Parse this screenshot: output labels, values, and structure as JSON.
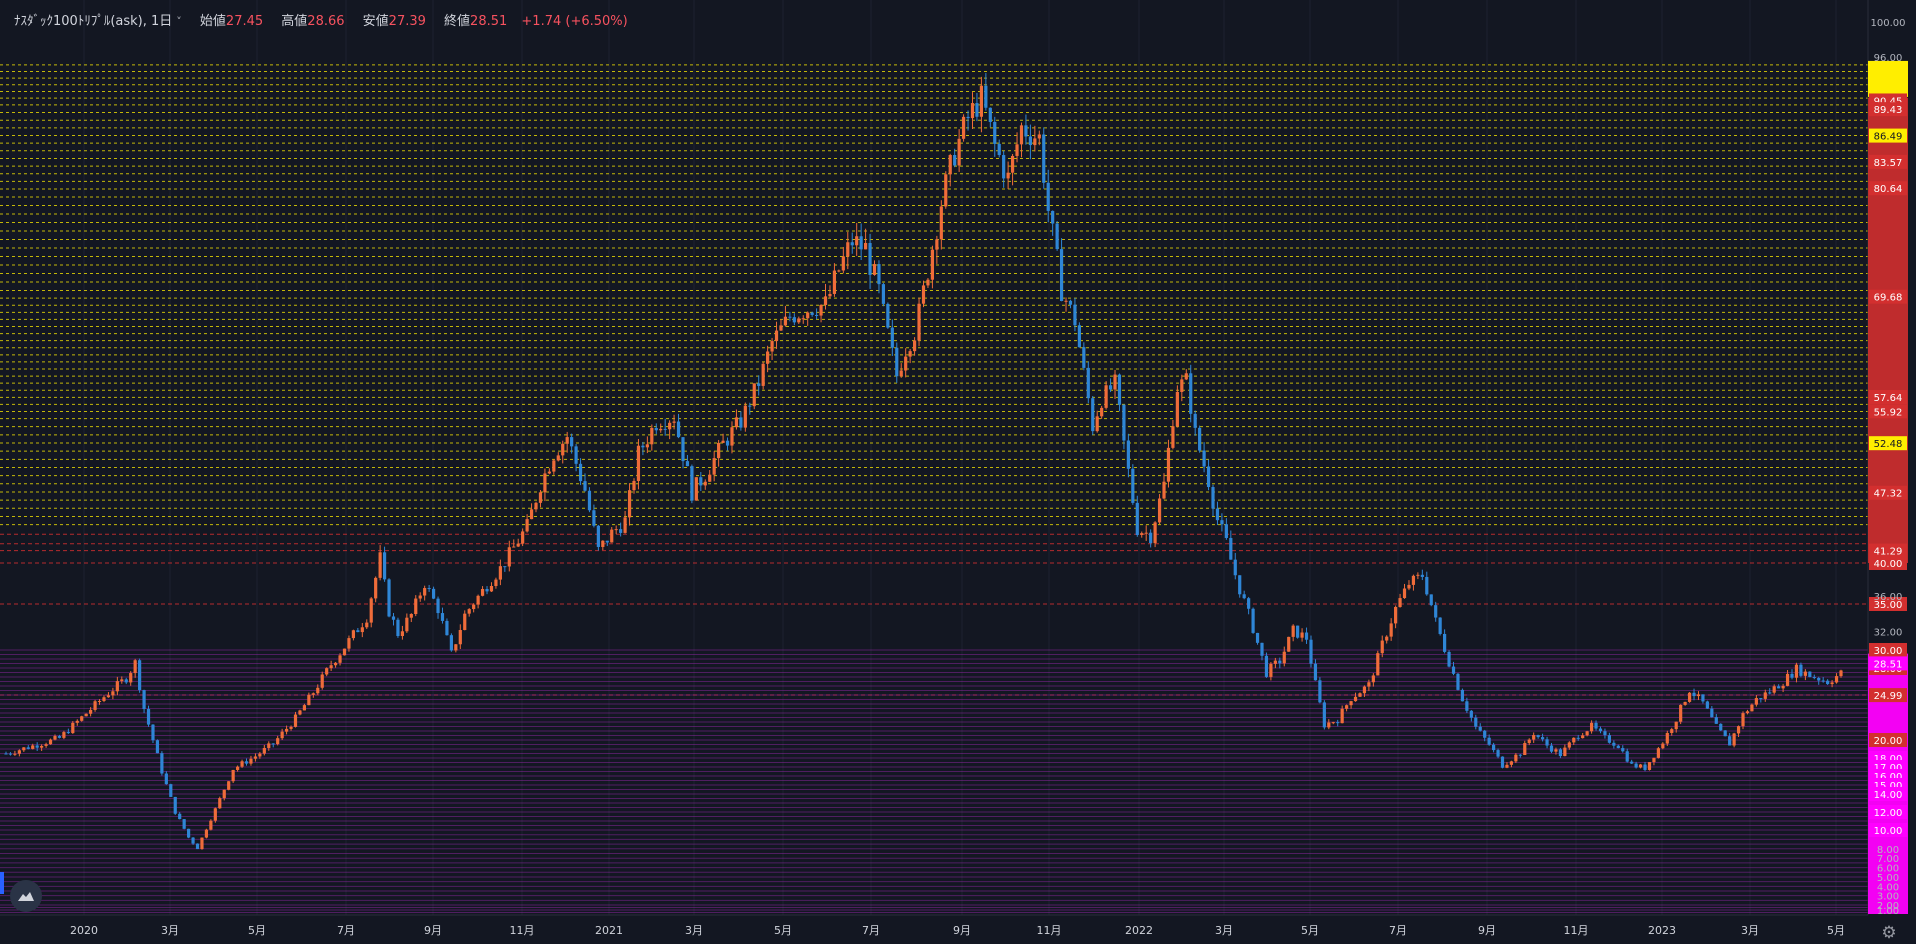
{
  "legend": {
    "symbol": "ﾅｽﾀﾞｯｸ100ﾄﾘﾌﾟﾙ(ask), 1日",
    "open_label": "始値",
    "open": "27.45",
    "high_label": "高値",
    "high": "28.66",
    "low_label": "安値",
    "low": "27.39",
    "close_label": "終値",
    "close": "28.51",
    "change": "+1.74 (+6.50%)"
  },
  "colors": {
    "background": "#131722",
    "up": "#ef6c3a",
    "down": "#2f86d6",
    "yellow_level": "#ffee00",
    "red_level": "#d32f2f",
    "magenta_level": "#ff00ff",
    "purple_line": "#9c27b0"
  },
  "icons": {
    "logo": "tradingview-logo-icon",
    "settings": "gear-icon"
  },
  "chart_data": {
    "type": "candlestick",
    "y_axis_ticks": [
      "100.00",
      "96.00",
      "36.00",
      "32.00",
      "8.00",
      "7.00",
      "6.00",
      "5.00",
      "4.00",
      "3.00",
      "2.00",
      "1.00"
    ],
    "ylim": [
      0,
      100
    ],
    "x_ticks": [
      "2020",
      "3月",
      "5月",
      "7月",
      "9月",
      "11月",
      "2021",
      "3月",
      "5月",
      "7月",
      "9月",
      "11月",
      "2022",
      "3月",
      "5月",
      "7月",
      "9月",
      "11月",
      "2023",
      "3月",
      "5月"
    ],
    "price_path": [
      [
        0,
        18.5
      ],
      [
        12,
        20.2
      ],
      [
        17,
        22.5
      ],
      [
        22,
        24.8
      ],
      [
        27,
        26.9
      ],
      [
        29,
        28.6
      ],
      [
        31,
        23.5
      ],
      [
        35,
        16.5
      ],
      [
        38,
        12.0
      ],
      [
        41,
        9.2
      ],
      [
        43,
        8.1
      ],
      [
        47,
        12.3
      ],
      [
        51,
        16.8
      ],
      [
        56,
        18.2
      ],
      [
        60,
        19.6
      ],
      [
        65,
        22.4
      ],
      [
        69,
        25.3
      ],
      [
        73,
        28.4
      ],
      [
        77,
        31.0
      ],
      [
        81,
        33.6
      ],
      [
        84,
        40.5
      ],
      [
        86,
        34.2
      ],
      [
        88,
        31.8
      ],
      [
        91,
        33.8
      ],
      [
        94,
        37.5
      ],
      [
        97,
        34.5
      ],
      [
        100,
        29.5
      ],
      [
        103,
        33.8
      ],
      [
        107,
        36.6
      ],
      [
        110,
        38.6
      ],
      [
        114,
        41.6
      ],
      [
        117,
        43.8
      ],
      [
        120,
        48.2
      ],
      [
        123,
        51.4
      ],
      [
        126,
        53.2
      ],
      [
        128,
        50.4
      ],
      [
        130,
        47.6
      ],
      [
        133,
        41.3
      ],
      [
        136,
        43.1
      ],
      [
        139,
        44.4
      ],
      [
        142,
        51.4
      ],
      [
        146,
        54.7
      ],
      [
        150,
        55.3
      ],
      [
        154,
        47.4
      ],
      [
        157,
        49.2
      ],
      [
        161,
        52.4
      ],
      [
        165,
        54.8
      ],
      [
        169,
        59.4
      ],
      [
        172,
        64.2
      ],
      [
        176,
        67.3
      ],
      [
        180,
        68.2
      ],
      [
        184,
        68.8
      ],
      [
        187,
        72.4
      ],
      [
        190,
        75.3
      ],
      [
        193,
        74.5
      ],
      [
        196,
        70.2
      ],
      [
        198,
        65.2
      ],
      [
        200,
        60.2
      ],
      [
        202,
        63.4
      ],
      [
        204,
        65.4
      ],
      [
        207,
        72.5
      ],
      [
        210,
        79.2
      ],
      [
        213,
        84.6
      ],
      [
        216,
        88.4
      ],
      [
        219,
        90.8
      ],
      [
        222,
        85.3
      ],
      [
        225,
        81.7
      ],
      [
        228,
        87.4
      ],
      [
        232,
        86.2
      ],
      [
        234,
        78.4
      ],
      [
        237,
        70.5
      ],
      [
        240,
        66.8
      ],
      [
        242,
        60.5
      ],
      [
        244,
        54.3
      ],
      [
        246,
        57.4
      ],
      [
        249,
        59.2
      ],
      [
        251,
        52.4
      ],
      [
        254,
        43.6
      ],
      [
        257,
        42.9
      ],
      [
        260,
        48.2
      ],
      [
        263,
        58.8
      ],
      [
        265,
        59.6
      ],
      [
        267,
        53.4
      ],
      [
        270,
        48.6
      ],
      [
        272,
        44.5
      ],
      [
        274,
        42.1
      ],
      [
        277,
        36.8
      ],
      [
        280,
        32.4
      ],
      [
        283,
        27.5
      ],
      [
        286,
        28.8
      ],
      [
        289,
        32.1
      ],
      [
        292,
        31.3
      ],
      [
        294,
        26.2
      ],
      [
        296,
        21.7
      ],
      [
        299,
        22.3
      ],
      [
        302,
        24.7
      ],
      [
        306,
        26.1
      ],
      [
        309,
        30.6
      ],
      [
        312,
        34.5
      ],
      [
        315,
        37.5
      ],
      [
        318,
        38.5
      ],
      [
        321,
        33.1
      ],
      [
        324,
        28.7
      ],
      [
        327,
        24.6
      ],
      [
        330,
        21.4
      ],
      [
        333,
        19.5
      ],
      [
        336,
        17.2
      ],
      [
        340,
        18.6
      ],
      [
        343,
        20.8
      ],
      [
        346,
        19.4
      ],
      [
        349,
        18.4
      ],
      [
        353,
        20.6
      ],
      [
        356,
        21.5
      ],
      [
        359,
        20.2
      ],
      [
        362,
        19.4
      ],
      [
        365,
        17.2
      ],
      [
        368,
        16.9
      ],
      [
        372,
        19.8
      ],
      [
        375,
        22.4
      ],
      [
        378,
        25.6
      ],
      [
        381,
        24.1
      ],
      [
        384,
        21.4
      ],
      [
        387,
        19.6
      ],
      [
        390,
        22.8
      ],
      [
        393,
        24.5
      ],
      [
        396,
        25.4
      ],
      [
        399,
        26.5
      ],
      [
        402,
        27.9
      ],
      [
        405,
        27.2
      ],
      [
        409,
        26.5
      ],
      [
        412,
        27.4
      ]
    ],
    "horizontal_levels": [
      {
        "price": "90.45"
      },
      {
        "price": "89.43"
      },
      {
        "price": "86.49"
      },
      {
        "price": "83.57"
      },
      {
        "price": "80.64"
      },
      {
        "price": "69.68"
      },
      {
        "price": "57.64"
      },
      {
        "price": "55.92"
      },
      {
        "price": "52.48"
      },
      {
        "price": "47.32"
      },
      {
        "price": "41.29"
      },
      {
        "price": "40.00"
      },
      {
        "price": "35.00"
      },
      {
        "price": "30.00"
      },
      {
        "price": "28.00"
      },
      {
        "price": "24.99"
      },
      {
        "price": "20.00"
      },
      {
        "price": "18.00"
      },
      {
        "price": "17.00"
      },
      {
        "price": "16.00"
      },
      {
        "price": "15.00"
      },
      {
        "price": "14.00"
      },
      {
        "price": "12.00"
      },
      {
        "price": "10.00"
      }
    ],
    "current_price": "28.51"
  }
}
